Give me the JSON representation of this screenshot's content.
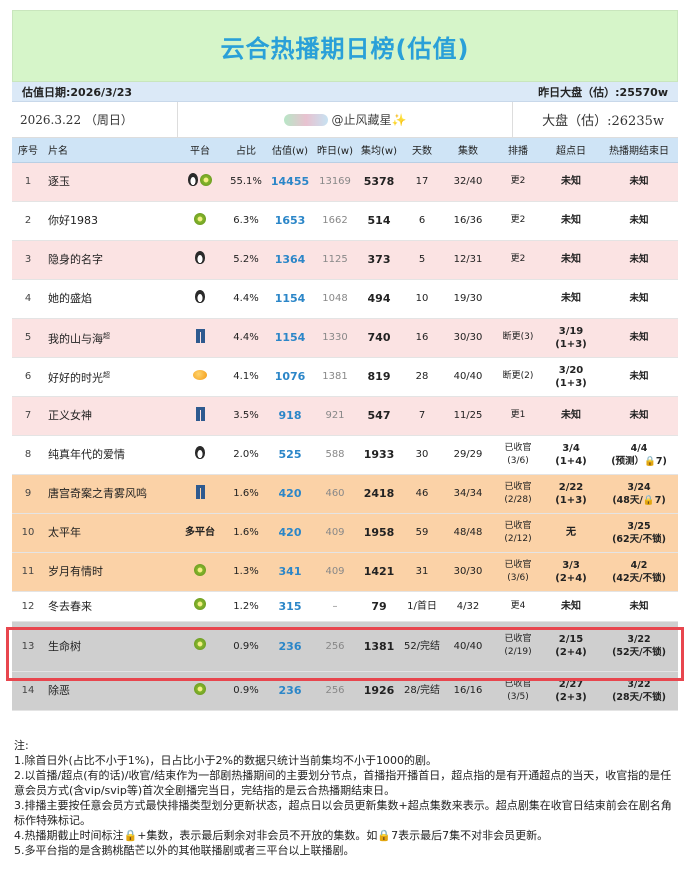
{
  "title": "云合热播期日榜(估值)",
  "header": {
    "estimate_date": "估值日期:2026/3/23",
    "yesterday_market": "昨日大盘（估）:25570w",
    "date": "2026.3.22  （周日）",
    "watermark": "@止风藏星✨",
    "market": "大盘（估）:26235w"
  },
  "columns": [
    "序号",
    "片名",
    "平台",
    "占比",
    "估值(w)",
    "昨日(w)",
    "集均(w)",
    "天数",
    "集数",
    "排播",
    "超点日",
    "热播期结束日"
  ],
  "rows": [
    {
      "no": "1",
      "name": "逐玉",
      "platform_icons": [
        "penguin-icon",
        "kiwi-icon"
      ],
      "platform_text": "",
      "share": "55.1%",
      "estimate": "14455",
      "yesterday": "13169",
      "avg": "5378",
      "days": "17",
      "episodes": "32/40",
      "schedule": "更2",
      "super_day": "未知",
      "end": "未知",
      "row_style": "pink"
    },
    {
      "no": "2",
      "name": "你好1983",
      "platform_icons": [
        "kiwi-icon"
      ],
      "platform_text": "",
      "share": "6.3%",
      "estimate": "1653",
      "yesterday": "1662",
      "avg": "514",
      "days": "6",
      "episodes": "16/36",
      "schedule": "更2",
      "super_day": "未知",
      "end": "未知",
      "row_style": "white"
    },
    {
      "no": "3",
      "name": "隐身的名字",
      "platform_icons": [
        "penguin-icon"
      ],
      "platform_text": "",
      "share": "5.2%",
      "estimate": "1364",
      "yesterday": "1125",
      "avg": "373",
      "days": "5",
      "episodes": "12/31",
      "schedule": "更2",
      "super_day": "未知",
      "end": "未知",
      "row_style": "pink"
    },
    {
      "no": "4",
      "name": "她的盛焰",
      "platform_icons": [
        "penguin-icon"
      ],
      "platform_text": "",
      "share": "4.4%",
      "estimate": "1154",
      "yesterday": "1048",
      "avg": "494",
      "days": "10",
      "episodes": "19/30",
      "schedule": "",
      "super_day": "未知",
      "end": "未知",
      "row_style": "white"
    },
    {
      "no": "5",
      "name": "我的山与海",
      "name_sup": "超",
      "platform_icons": [
        "pants-icon"
      ],
      "platform_text": "",
      "share": "4.4%",
      "estimate": "1154",
      "yesterday": "1330",
      "avg": "740",
      "days": "16",
      "episodes": "30/30",
      "schedule": "断更(3)",
      "super_day": "3/19\n(1+3)",
      "end": "未知",
      "row_style": "pink"
    },
    {
      "no": "6",
      "name": "好好的时光",
      "name_sup": "超",
      "platform_icons": [
        "mango-icon"
      ],
      "platform_text": "",
      "share": "4.1%",
      "estimate": "1076",
      "yesterday": "1381",
      "avg": "819",
      "days": "28",
      "episodes": "40/40",
      "schedule": "断更(2)",
      "super_day": "3/20\n(1+3)",
      "end": "未知",
      "row_style": "white"
    },
    {
      "no": "7",
      "name": "正义女神",
      "platform_icons": [
        "pants-icon"
      ],
      "platform_text": "",
      "share": "3.5%",
      "estimate": "918",
      "yesterday": "921",
      "avg": "547",
      "days": "7",
      "episodes": "11/25",
      "schedule": "更1",
      "super_day": "未知",
      "end": "未知",
      "row_style": "pink"
    },
    {
      "no": "8",
      "name": "纯真年代的爱情",
      "platform_icons": [
        "penguin-icon"
      ],
      "platform_text": "",
      "share": "2.0%",
      "estimate": "525",
      "yesterday": "588",
      "avg": "1933",
      "days": "30",
      "episodes": "29/29",
      "schedule": "已收官\n(3/6)",
      "super_day": "3/4\n(1+4)",
      "end": "4/4\n(预测）🔒7)",
      "row_style": "white"
    },
    {
      "no": "9",
      "name": "唐宫奇案之青雾风鸣",
      "platform_icons": [
        "pants-icon"
      ],
      "platform_text": "",
      "share": "1.6%",
      "estimate": "420",
      "yesterday": "460",
      "avg": "2418",
      "days": "46",
      "episodes": "34/34",
      "schedule": "已收官\n(2/28)",
      "super_day": "2/22\n(1+3)",
      "end": "3/24\n(48天/🔒7)",
      "row_style": "orange"
    },
    {
      "no": "10",
      "name": "太平年",
      "platform_icons": [],
      "platform_text": "多平台",
      "share": "1.6%",
      "estimate": "420",
      "yesterday": "409",
      "avg": "1958",
      "days": "59",
      "episodes": "48/48",
      "schedule": "已收官\n(2/12)",
      "super_day": "无",
      "end": "3/25\n(62天/不锁)",
      "row_style": "orange"
    },
    {
      "no": "11",
      "name": "岁月有情时",
      "platform_icons": [
        "kiwi-icon"
      ],
      "platform_text": "",
      "share": "1.3%",
      "estimate": "341",
      "yesterday": "409",
      "avg": "1421",
      "days": "31",
      "episodes": "30/30",
      "schedule": "已收官\n(3/6)",
      "super_day": "3/3\n(2+4)",
      "end": "4/2\n(42天/不锁)",
      "row_style": "orange"
    },
    {
      "no": "12",
      "name": "冬去春来",
      "platform_icons": [
        "kiwi-icon"
      ],
      "platform_text": "",
      "share": "1.2%",
      "estimate": "315",
      "yesterday": "–",
      "avg": "79",
      "days": "1/首日",
      "episodes": "4/32",
      "schedule": "更4",
      "super_day": "未知",
      "end": "未知",
      "row_style": "white"
    },
    {
      "no": "13",
      "name": "生命树",
      "platform_icons": [
        "kiwi-icon"
      ],
      "platform_text": "",
      "share": "0.9%",
      "estimate": "236",
      "yesterday": "256",
      "avg": "1381",
      "days": "52/完结",
      "episodes": "40/40",
      "schedule": "已收官\n(2/19)",
      "super_day": "2/15\n(2+4)",
      "end": "3/22\n(52天/不锁)",
      "row_style": "gray"
    },
    {
      "no": "14",
      "name": "除恶",
      "platform_icons": [
        "kiwi-icon"
      ],
      "platform_text": "",
      "share": "0.9%",
      "estimate": "236",
      "yesterday": "256",
      "avg": "1926",
      "days": "28/完结",
      "episodes": "16/16",
      "schedule": "已收官\n(3/5)",
      "super_day": "2/27\n(2+3)",
      "end": "3/22\n(28天/不锁)",
      "row_style": "gray"
    }
  ],
  "notes": {
    "heading": "注:",
    "items": [
      "1.除首日外(占比不小于1%)，日占比小于2%的数据只统计当前集均不小于1000的剧。",
      "2.以首播/超点(有的话)/收官/结束作为一部剧热播期间的主要划分节点，首播指开播首日，超点指的是有开通超点的当天，收官指的是任意会员方式(含vip/svip等)首次全剧播完当日，完结指的是云合热播期结束日。",
      "3.排播主要按任意会员方式最快排播类型划分更新状态，超点日以会员更新集数+超点集数来表示。超点剧集在收官日结束前会在剧名角标作特殊标记。",
      "4.热播期截止时间标注🔒+集数，表示最后剩余对非会员不开放的集数。如🔒7表示最后7集不对非会员更新。",
      "5.多平台指的是含鹅桃酷芒以外的其他联播剧或者三平台以上联播剧。"
    ]
  },
  "colors": {
    "title_bg": "#d6f5c9",
    "title_text": "#2aa0d8",
    "highlight": "#e8464e",
    "estimate": "#2b86c8"
  }
}
